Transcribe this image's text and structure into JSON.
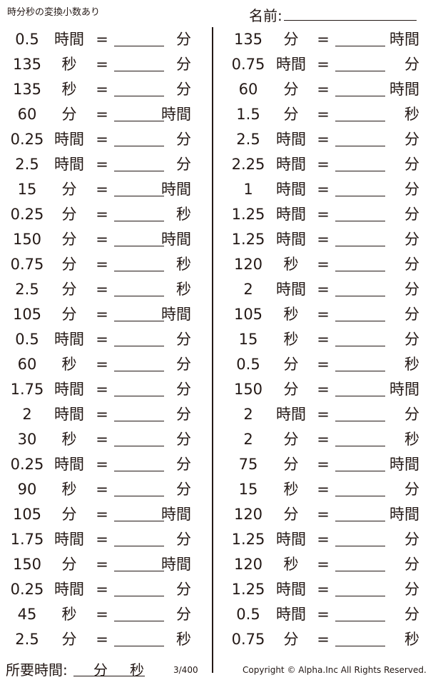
{
  "header": {
    "title": "時分秒の変換小数あり",
    "name_label": "名前:"
  },
  "left_problems": [
    {
      "value": "0.5",
      "from": "時間",
      "to": "分"
    },
    {
      "value": "135",
      "from": "秒",
      "to": "分"
    },
    {
      "value": "135",
      "from": "秒",
      "to": "分"
    },
    {
      "value": "60",
      "from": "分",
      "to": "時間"
    },
    {
      "value": "0.25",
      "from": "時間",
      "to": "分"
    },
    {
      "value": "2.5",
      "from": "時間",
      "to": "分"
    },
    {
      "value": "15",
      "from": "分",
      "to": "時間"
    },
    {
      "value": "0.25",
      "from": "分",
      "to": "秒"
    },
    {
      "value": "150",
      "from": "分",
      "to": "時間"
    },
    {
      "value": "0.75",
      "from": "分",
      "to": "秒"
    },
    {
      "value": "2.5",
      "from": "分",
      "to": "秒"
    },
    {
      "value": "105",
      "from": "分",
      "to": "時間"
    },
    {
      "value": "0.5",
      "from": "時間",
      "to": "分"
    },
    {
      "value": "60",
      "from": "秒",
      "to": "分"
    },
    {
      "value": "1.75",
      "from": "時間",
      "to": "分"
    },
    {
      "value": "2",
      "from": "時間",
      "to": "分"
    },
    {
      "value": "30",
      "from": "秒",
      "to": "分"
    },
    {
      "value": "0.25",
      "from": "時間",
      "to": "分"
    },
    {
      "value": "90",
      "from": "秒",
      "to": "分"
    },
    {
      "value": "105",
      "from": "分",
      "to": "時間"
    },
    {
      "value": "1.75",
      "from": "時間",
      "to": "分"
    },
    {
      "value": "150",
      "from": "分",
      "to": "時間"
    },
    {
      "value": "0.25",
      "from": "時間",
      "to": "分"
    },
    {
      "value": "45",
      "from": "秒",
      "to": "分"
    },
    {
      "value": "2.5",
      "from": "分",
      "to": "秒"
    }
  ],
  "right_problems": [
    {
      "value": "135",
      "from": "分",
      "to": "時間"
    },
    {
      "value": "0.75",
      "from": "時間",
      "to": "分"
    },
    {
      "value": "60",
      "from": "分",
      "to": "時間"
    },
    {
      "value": "1.5",
      "from": "分",
      "to": "秒"
    },
    {
      "value": "2.5",
      "from": "時間",
      "to": "分"
    },
    {
      "value": "2.25",
      "from": "時間",
      "to": "分"
    },
    {
      "value": "1",
      "from": "時間",
      "to": "分"
    },
    {
      "value": "1.25",
      "from": "時間",
      "to": "分"
    },
    {
      "value": "1.25",
      "from": "時間",
      "to": "分"
    },
    {
      "value": "120",
      "from": "秒",
      "to": "分"
    },
    {
      "value": "2",
      "from": "時間",
      "to": "分"
    },
    {
      "value": "105",
      "from": "秒",
      "to": "分"
    },
    {
      "value": "15",
      "from": "秒",
      "to": "分"
    },
    {
      "value": "0.5",
      "from": "分",
      "to": "秒"
    },
    {
      "value": "150",
      "from": "分",
      "to": "時間"
    },
    {
      "value": "2",
      "from": "時間",
      "to": "分"
    },
    {
      "value": "2",
      "from": "分",
      "to": "秒"
    },
    {
      "value": "75",
      "from": "分",
      "to": "時間"
    },
    {
      "value": "15",
      "from": "秒",
      "to": "分"
    },
    {
      "value": "120",
      "from": "分",
      "to": "時間"
    },
    {
      "value": "1.25",
      "from": "時間",
      "to": "分"
    },
    {
      "value": "120",
      "from": "秒",
      "to": "分"
    },
    {
      "value": "1.25",
      "from": "時間",
      "to": "分"
    },
    {
      "value": "0.5",
      "from": "時間",
      "to": "分"
    },
    {
      "value": "0.75",
      "from": "分",
      "to": "秒"
    }
  ],
  "equals": "=",
  "footer": {
    "time_label": "所要時間:",
    "minutes_unit": "分",
    "seconds_unit": "秒",
    "page": "3/400",
    "copyright": "Copyright © Alpha.Inc All Rights Reserved."
  }
}
